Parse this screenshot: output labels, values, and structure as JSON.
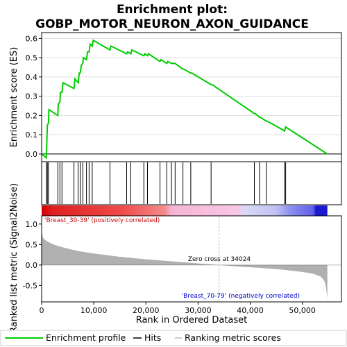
{
  "title_line1": "Enrichment plot:",
  "title_line2": "GOBP_MOTOR_NEURON_AXON_GUIDANCE",
  "colors": {
    "es_line": "#00cc00",
    "pos_label": "#cc0000",
    "neg_label": "#0000cc",
    "metric_fill": "#b0b0b0",
    "zero_line": "#000000"
  },
  "labels": {
    "pos_phenotype": "'Breast_30-39' (positively correlated)",
    "neg_phenotype": "'Breast_70-79' (negatively correlated)",
    "zero_cross": "Zero cross at 34024"
  },
  "legend": {
    "items": [
      {
        "name": "Enrichment profile",
        "color": "#00cc00"
      },
      {
        "name": "Hits",
        "color": "#000000"
      },
      {
        "name": "Ranking metric scores",
        "color": "#bbbbbb"
      }
    ]
  },
  "chart_data": [
    {
      "type": "line",
      "title": "Enrichment plot: GOBP_MOTOR_NEURON_AXON_GUIDANCE",
      "xlabel": "",
      "ylabel": "Enrichment score (ES)",
      "xlim": [
        0,
        57500
      ],
      "ylim": [
        -0.04,
        0.63
      ],
      "yticks": [
        "0.0",
        "0.1",
        "0.2",
        "0.3",
        "0.4",
        "0.5",
        "0.6"
      ],
      "series": [
        {
          "name": "Enrichment profile",
          "points": [
            [
              0,
              0.0
            ],
            [
              900,
              -0.02
            ],
            [
              1000,
              0.07
            ],
            [
              1100,
              0.15
            ],
            [
              1300,
              0.16
            ],
            [
              1400,
              0.23
            ],
            [
              3100,
              0.2
            ],
            [
              3200,
              0.26
            ],
            [
              3500,
              0.27
            ],
            [
              3600,
              0.32
            ],
            [
              3900,
              0.32
            ],
            [
              4100,
              0.37
            ],
            [
              6200,
              0.34
            ],
            [
              6400,
              0.39
            ],
            [
              7000,
              0.37
            ],
            [
              7200,
              0.42
            ],
            [
              7400,
              0.42
            ],
            [
              7600,
              0.46
            ],
            [
              7900,
              0.47
            ],
            [
              8000,
              0.5
            ],
            [
              8600,
              0.49
            ],
            [
              8800,
              0.53
            ],
            [
              9100,
              0.53
            ],
            [
              9300,
              0.57
            ],
            [
              9700,
              0.56
            ],
            [
              9900,
              0.59
            ],
            [
              13100,
              0.54
            ],
            [
              13300,
              0.56
            ],
            [
              16300,
              0.52
            ],
            [
              16500,
              0.53
            ],
            [
              17100,
              0.52
            ],
            [
              17300,
              0.54
            ],
            [
              19600,
              0.51
            ],
            [
              19800,
              0.52
            ],
            [
              20300,
              0.51
            ],
            [
              20500,
              0.52
            ],
            [
              22700,
              0.48
            ],
            [
              22900,
              0.49
            ],
            [
              24000,
              0.47
            ],
            [
              24200,
              0.48
            ],
            [
              24900,
              0.47
            ],
            [
              25100,
              0.47
            ],
            [
              25600,
              0.47
            ],
            [
              27100,
              0.44
            ],
            [
              27300,
              0.44
            ],
            [
              28600,
              0.42
            ],
            [
              28800,
              0.42
            ],
            [
              32500,
              0.36
            ],
            [
              32700,
              0.36
            ],
            [
              40800,
              0.21
            ],
            [
              41000,
              0.21
            ],
            [
              41800,
              0.19
            ],
            [
              42000,
              0.19
            ],
            [
              43100,
              0.17
            ],
            [
              43300,
              0.17
            ],
            [
              46600,
              0.12
            ],
            [
              46800,
              0.14
            ],
            [
              54800,
              0.0
            ]
          ]
        }
      ]
    },
    {
      "type": "line",
      "title": "",
      "xlabel": "Rank in Ordered Dataset",
      "ylabel": "Ranked list metric (Signal2Noise)",
      "xlim": [
        0,
        57500
      ],
      "ylim": [
        -0.9,
        1.2
      ],
      "xticks": [
        "0",
        "10,000",
        "20,000",
        "30,000",
        "40,000",
        "50,000"
      ],
      "xtick_values": [
        0,
        10000,
        20000,
        30000,
        40000,
        50000
      ],
      "yticks": [
        "-0.5",
        "0.0",
        "0.5",
        "1.0"
      ],
      "ytick_values": [
        -0.5,
        0.0,
        0.5,
        1.0
      ],
      "zero_cross": 34024,
      "n_genes": 54800,
      "series": [
        {
          "name": "Ranking metric scores",
          "points": [
            [
              0,
              0.88
            ],
            [
              200,
              0.68
            ],
            [
              500,
              0.63
            ],
            [
              1000,
              0.58
            ],
            [
              2000,
              0.52
            ],
            [
              3000,
              0.47
            ],
            [
              5000,
              0.4
            ],
            [
              7000,
              0.34
            ],
            [
              10000,
              0.28
            ],
            [
              15000,
              0.2
            ],
            [
              20000,
              0.14
            ],
            [
              25000,
              0.09
            ],
            [
              30000,
              0.04
            ],
            [
              34024,
              0.0
            ],
            [
              38000,
              -0.04
            ],
            [
              42000,
              -0.07
            ],
            [
              46000,
              -0.11
            ],
            [
              50000,
              -0.17
            ],
            [
              52000,
              -0.21
            ],
            [
              53500,
              -0.28
            ],
            [
              54200,
              -0.38
            ],
            [
              54500,
              -0.52
            ],
            [
              54700,
              -0.72
            ],
            [
              54800,
              -0.82
            ]
          ]
        }
      ],
      "hits": [
        900,
        1100,
        1300,
        3100,
        3500,
        3900,
        6200,
        7000,
        7400,
        7900,
        8600,
        9100,
        9700,
        13100,
        16300,
        17100,
        19600,
        20300,
        22700,
        24000,
        24900,
        25600,
        27100,
        28600,
        32500,
        40800,
        41800,
        43100,
        46600,
        46800
      ]
    }
  ]
}
